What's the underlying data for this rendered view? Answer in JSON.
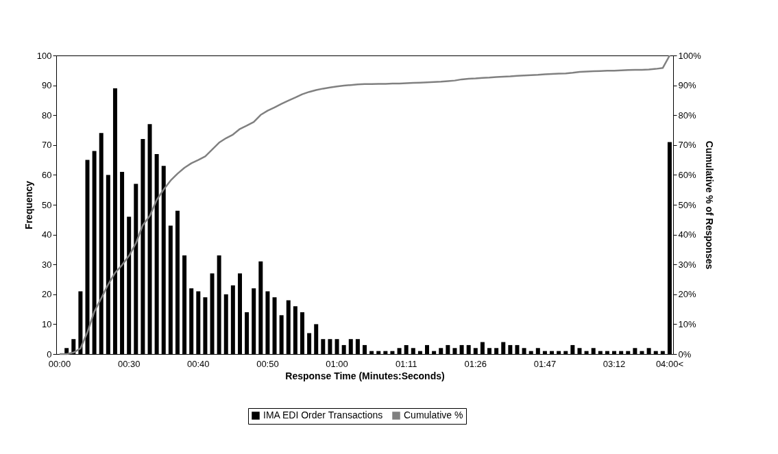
{
  "chart_data": {
    "type": "bar",
    "xlabel": "Response Time (Minutes:Seconds)",
    "ylabel": "Frequency",
    "y2label": "Cumulative % of Responses",
    "categories": [
      "00:00",
      null,
      null,
      null,
      null,
      null,
      null,
      null,
      null,
      null,
      "00:30",
      null,
      null,
      null,
      null,
      null,
      null,
      null,
      null,
      null,
      "00:40",
      null,
      null,
      null,
      null,
      null,
      null,
      null,
      null,
      null,
      "00:50",
      null,
      null,
      null,
      null,
      null,
      null,
      null,
      null,
      null,
      "01:00",
      null,
      null,
      null,
      null,
      null,
      null,
      null,
      null,
      null,
      "01:11",
      null,
      null,
      null,
      null,
      null,
      null,
      null,
      null,
      null,
      "01:26",
      null,
      null,
      null,
      null,
      null,
      null,
      null,
      null,
      null,
      "01:47",
      null,
      null,
      null,
      null,
      null,
      null,
      null,
      null,
      null,
      "03:12",
      null,
      null,
      null,
      null,
      null,
      null,
      null,
      "04:00<"
    ],
    "series": [
      {
        "name": "IMA EDI Order Transactions",
        "color": "#000000",
        "values": [
          0,
          2,
          5,
          21,
          65,
          68,
          74,
          60,
          89,
          61,
          46,
          57,
          72,
          77,
          67,
          63,
          43,
          48,
          33,
          22,
          21,
          19,
          27,
          33,
          20,
          23,
          27,
          14,
          22,
          31,
          21,
          19,
          13,
          18,
          16,
          14,
          7,
          10,
          5,
          5,
          5,
          3,
          5,
          5,
          3,
          1,
          1,
          1,
          1,
          2,
          3,
          2,
          1,
          3,
          1,
          2,
          3,
          2,
          3,
          3,
          2,
          4,
          2,
          2,
          4,
          3,
          3,
          2,
          1,
          2,
          1,
          1,
          1,
          1,
          3,
          2,
          1,
          2,
          1,
          1,
          1,
          1,
          1,
          2,
          1,
          2,
          1,
          1,
          71
        ]
      },
      {
        "name": "Cumulative %",
        "type": "line",
        "axis": "y2",
        "color": "#808080",
        "values": [
          0,
          0,
          0.5,
          1.9,
          7.3,
          14.2,
          18.7,
          23.3,
          27.2,
          29.8,
          32.9,
          37.1,
          43.2,
          46.3,
          51.6,
          55.1,
          58.1,
          60.4,
          62.4,
          63.9,
          65.0,
          66.2,
          68.5,
          70.8,
          72.3,
          73.5,
          75.4,
          76.5,
          77.7,
          80.1,
          81.5,
          82.6,
          83.8,
          84.9,
          85.9,
          87.0,
          87.8,
          88.4,
          88.9,
          89.3,
          89.6,
          89.9,
          90.1,
          90.3,
          90.4,
          90.4,
          90.5,
          90.5,
          90.6,
          90.6,
          90.7,
          90.8,
          90.9,
          91.0,
          91.1,
          91.2,
          91.4,
          91.6,
          92.0,
          92.2,
          92.3,
          92.5,
          92.6,
          92.8,
          92.9,
          93.0,
          93.2,
          93.3,
          93.4,
          93.5,
          93.7,
          93.8,
          93.9,
          94.0,
          94.2,
          94.5,
          94.6,
          94.7,
          94.8,
          94.9,
          94.9,
          95.0,
          95.1,
          95.2,
          95.2,
          95.3,
          95.5,
          95.8,
          100
        ]
      }
    ],
    "ylim": [
      0,
      100
    ],
    "yticks": [
      0,
      10,
      20,
      30,
      40,
      50,
      60,
      70,
      80,
      90,
      100
    ],
    "y2lim": [
      0,
      100
    ],
    "y2ticks": [
      {
        "value": 0,
        "label": "0%"
      },
      {
        "value": 10,
        "label": "10%"
      },
      {
        "value": 20,
        "label": "20%"
      },
      {
        "value": 30,
        "label": "30%"
      },
      {
        "value": 40,
        "label": "40%"
      },
      {
        "value": 50,
        "label": "50%"
      },
      {
        "value": 60,
        "label": "60%"
      },
      {
        "value": 70,
        "label": "70%"
      },
      {
        "value": 80,
        "label": "80%"
      },
      {
        "value": 90,
        "label": "90%"
      },
      {
        "value": 100,
        "label": "100%"
      }
    ],
    "grid": false,
    "legend": "bottom"
  }
}
